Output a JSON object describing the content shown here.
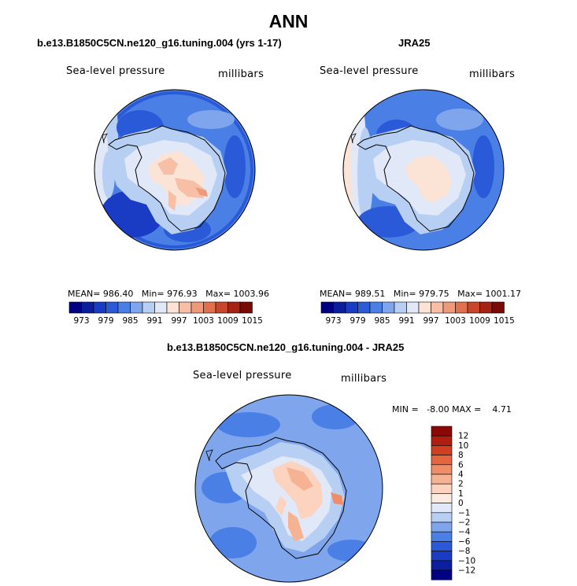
{
  "header": {
    "title": "ANN"
  },
  "colors": {
    "abs_scale": [
      "#000080",
      "#0a1e9e",
      "#1a3cc4",
      "#2a5ad8",
      "#4a80e6",
      "#7fa6ec",
      "#b8cff4",
      "#e1e8f8",
      "#fbe3d6",
      "#f6bfa6",
      "#ee9a7a",
      "#e0704e",
      "#c8462c",
      "#a42414",
      "#7a0a06"
    ],
    "diff_scale": [
      "#000080",
      "#0a1e9e",
      "#1a3cc4",
      "#2a5ad8",
      "#4a80e6",
      "#7fa6ec",
      "#b8cff4",
      "#e1e8f8",
      "#fdebe1",
      "#fbd3bf",
      "#f6b393",
      "#ee8d66",
      "#e3663f",
      "#cf3f20",
      "#b01e10",
      "#8a0806"
    ]
  },
  "panels": {
    "model": {
      "title": "b.e13.B1850C5CN.ne120_g16.tuning.004 (yrs 1-17)",
      "variable": "Sea-level pressure",
      "units": "millibars",
      "stats": "MEAN= 986.40   Min= 976.93   Max= 1003.96"
    },
    "obs": {
      "title": "JRA25",
      "variable": "Sea-level pressure",
      "units": "millibars",
      "stats": "MEAN= 989.51   Min= 979.75   Max= 1001.17"
    },
    "diff": {
      "title": "b.e13.B1850C5CN.ne120_g16.tuning.004 - JRA25",
      "variable": "Sea-level pressure",
      "units": "millibars",
      "stats": "MIN =   -8.00 MAX =    4.71"
    }
  },
  "chart_data": [
    {
      "type": "heatmap",
      "title": "b.e13.B1850C5CN.ne120_g16.tuning.004 (yrs 1-17)",
      "variable": "Sea-level pressure",
      "units": "millibars",
      "summary": {
        "mean": 986.4,
        "min": 976.93,
        "max": 1003.96
      },
      "colorbar_levels": [
        973,
        976,
        979,
        982,
        985,
        988,
        991,
        994,
        997,
        1000,
        1003,
        1006,
        1009,
        1012,
        1015
      ],
      "colorbar_labels": [
        "973",
        "979",
        "985",
        "991",
        "997",
        "1003",
        "1009",
        "1015"
      ]
    },
    {
      "type": "heatmap",
      "title": "JRA25",
      "variable": "Sea-level pressure",
      "units": "millibars",
      "summary": {
        "mean": 989.51,
        "min": 979.75,
        "max": 1001.17
      },
      "colorbar_levels": [
        973,
        976,
        979,
        982,
        985,
        988,
        991,
        994,
        997,
        1000,
        1003,
        1006,
        1009,
        1012,
        1015
      ],
      "colorbar_labels": [
        "973",
        "979",
        "985",
        "991",
        "997",
        "1003",
        "1009",
        "1015"
      ]
    },
    {
      "type": "heatmap",
      "title": "b.e13.B1850C5CN.ne120_g16.tuning.004 - JRA25",
      "variable": "Sea-level pressure",
      "units": "millibars",
      "summary": {
        "min": -8.0,
        "max": 4.71
      },
      "colorbar_labels": [
        "12",
        "10",
        "8",
        "6",
        "4",
        "2",
        "1",
        "0",
        "−1",
        "−2",
        "−4",
        "−6",
        "−8",
        "−10",
        "−12"
      ]
    }
  ]
}
